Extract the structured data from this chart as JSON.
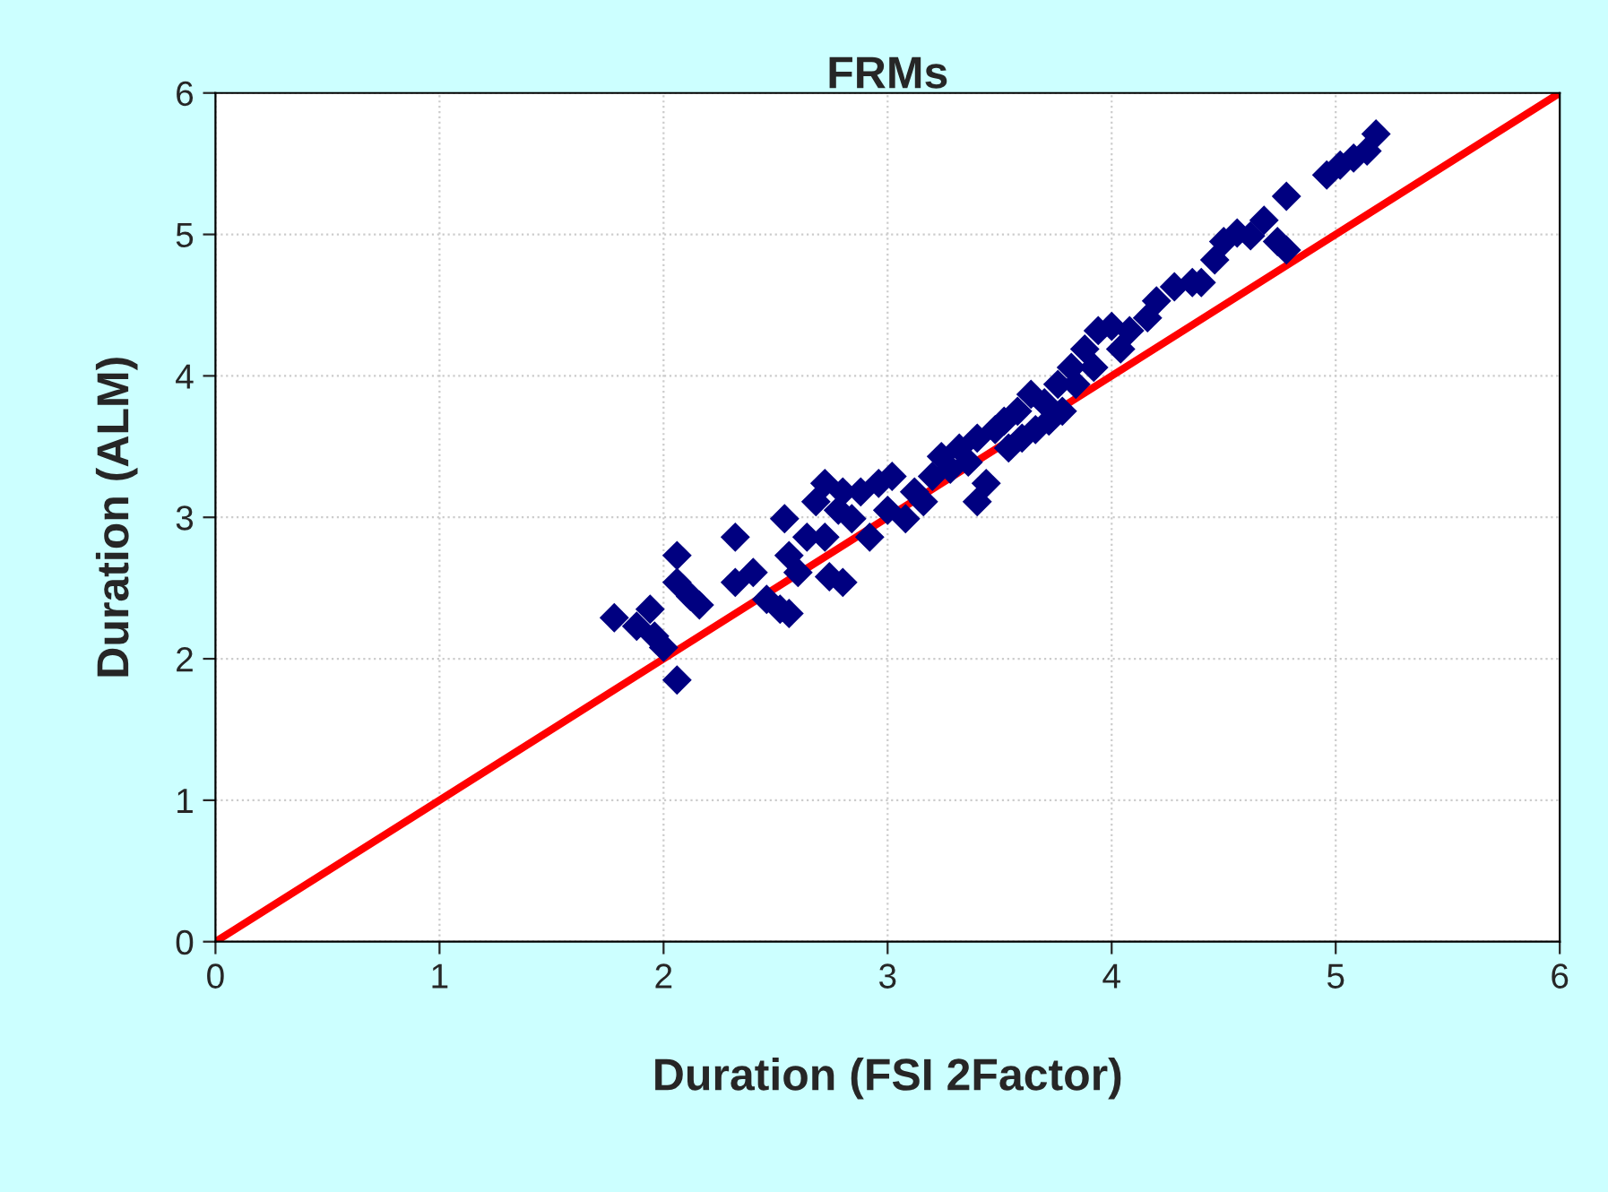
{
  "chart_data": {
    "type": "scatter",
    "title": "FRMs",
    "xlabel": "Duration (FSI 2Factor)",
    "ylabel": "Duration (ALM)",
    "xlim": [
      0,
      6
    ],
    "ylim": [
      0,
      6
    ],
    "xticks": [
      0,
      1,
      2,
      3,
      4,
      5,
      6
    ],
    "yticks": [
      0,
      1,
      2,
      3,
      4,
      5,
      6
    ],
    "grid": true,
    "marker": "diamond",
    "series": [
      {
        "color": "#000080",
        "x": [
          1.78,
          1.88,
          1.94,
          1.96,
          2.0,
          2.06,
          2.06,
          2.06,
          2.12,
          2.16,
          2.32,
          2.32,
          2.4,
          2.46,
          2.52,
          2.56,
          2.56,
          2.54,
          2.6,
          2.64,
          2.68,
          2.72,
          2.74,
          2.8,
          2.78,
          2.84,
          2.88,
          2.92,
          2.96,
          3.0,
          3.02,
          3.08,
          3.12,
          3.16,
          3.2,
          3.24,
          3.28,
          3.32,
          3.36,
          3.4,
          3.44,
          3.4,
          3.48,
          3.52,
          3.54,
          3.58,
          3.6,
          3.64,
          3.66,
          3.7,
          3.72,
          3.76,
          3.78,
          3.82,
          3.84,
          3.88,
          3.92,
          3.94,
          4.0,
          4.04,
          4.08,
          4.16,
          4.2,
          4.28,
          4.36,
          4.4,
          4.46,
          4.5,
          4.56,
          4.62,
          4.68,
          4.74,
          4.78,
          4.96,
          5.02,
          5.08,
          5.14,
          5.18,
          4.78,
          2.8,
          2.72
        ],
        "values": [
          2.29,
          2.23,
          2.35,
          2.16,
          2.08,
          1.85,
          2.73,
          2.54,
          2.44,
          2.38,
          2.54,
          2.86,
          2.61,
          2.42,
          2.35,
          2.32,
          2.73,
          2.99,
          2.61,
          2.86,
          3.11,
          2.86,
          2.58,
          2.54,
          3.05,
          2.99,
          3.18,
          2.86,
          3.24,
          3.05,
          3.29,
          2.99,
          3.18,
          3.11,
          3.29,
          3.43,
          3.34,
          3.49,
          3.39,
          3.11,
          3.24,
          3.56,
          3.62,
          3.68,
          3.49,
          3.75,
          3.56,
          3.87,
          3.62,
          3.81,
          3.68,
          3.94,
          3.75,
          4.06,
          3.94,
          4.19,
          4.06,
          4.32,
          4.35,
          4.19,
          4.32,
          4.41,
          4.53,
          4.63,
          4.66,
          4.66,
          4.82,
          4.95,
          5.01,
          4.99,
          5.1,
          4.95,
          5.27,
          5.42,
          5.49,
          5.54,
          5.59,
          5.71,
          4.89,
          3.18,
          3.24
        ]
      },
      {
        "type": "line",
        "color": "#ff0000",
        "line_style": "solid",
        "marker": "none",
        "x": [
          0,
          6
        ],
        "values": [
          0,
          6
        ]
      }
    ]
  }
}
